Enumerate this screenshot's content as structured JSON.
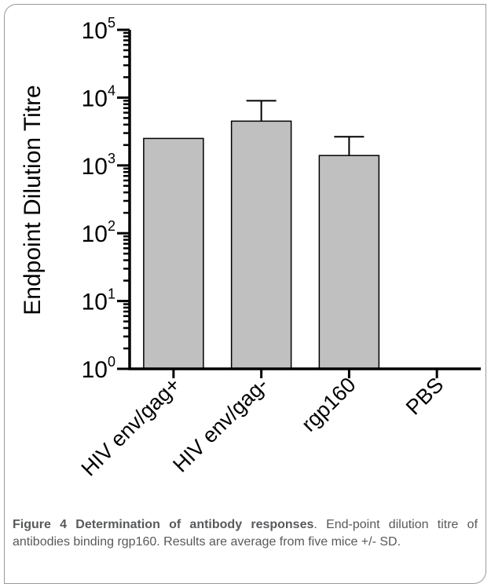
{
  "chart_data": {
    "type": "bar",
    "title": "",
    "xlabel": "",
    "ylabel": "Endpoint Dilution Titre",
    "y_scale": "log",
    "ylim": [
      1,
      100000
    ],
    "y_ticks": [
      {
        "base": "10",
        "exp": "0"
      },
      {
        "base": "10",
        "exp": "1"
      },
      {
        "base": "10",
        "exp": "2"
      },
      {
        "base": "10",
        "exp": "3"
      },
      {
        "base": "10",
        "exp": "4"
      },
      {
        "base": "10",
        "exp": "5"
      }
    ],
    "categories": [
      "HIV env/gag+",
      "HIV env/gag-",
      "rgp160",
      "PBS"
    ],
    "values": [
      2500,
      4500,
      1400,
      1
    ],
    "error_upper": [
      2500,
      9000,
      2650,
      1
    ],
    "grid": false,
    "legend": "none",
    "bar_color": "#c0c0c0",
    "edge_color": "#000000"
  },
  "caption": {
    "label": "Figure 4",
    "title": "Determination of antibody responses",
    "text": ". End-point dilution titre of antibodies binding rgp160. Results are average from five mice +/- SD."
  }
}
